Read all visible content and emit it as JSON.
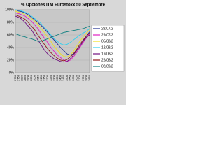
{
  "chart_data": {
    "type": "line",
    "title": "% Opciones ITM Eurostoxx 50 Septiembre",
    "categories": [
      "2700",
      "2750",
      "2800",
      "2850",
      "2900",
      "2950",
      "3000",
      "3050",
      "3100",
      "3150",
      "3200",
      "3250",
      "3300",
      "3350",
      "3400",
      "3450",
      "3500",
      "3550",
      "3600",
      "3650",
      "3700",
      "3750",
      "3800",
      "3850"
    ],
    "series": [
      {
        "name": "22/07/2",
        "color": "#1f2f8f",
        "values": [
          100,
          98,
          97,
          95,
          92,
          88,
          84,
          80,
          75,
          70,
          64,
          58,
          52,
          46,
          40,
          35,
          30,
          28,
          30,
          35,
          42,
          50,
          58,
          65
        ]
      },
      {
        "name": "29/07/2",
        "color": "#e020c0",
        "values": [
          95,
          94,
          92,
          90,
          86,
          82,
          76,
          70,
          62,
          55,
          48,
          40,
          34,
          28,
          24,
          20,
          18,
          20,
          25,
          32,
          40,
          48,
          55,
          62
        ]
      },
      {
        "name": "05/08/2",
        "color": "#f0e020",
        "values": [
          98,
          96,
          95,
          92,
          90,
          86,
          82,
          77,
          70,
          64,
          57,
          50,
          42,
          36,
          30,
          26,
          25,
          28,
          34,
          42,
          50,
          57,
          63,
          68
        ]
      },
      {
        "name": "12/08/2",
        "color": "#30d0f0",
        "values": [
          100,
          99,
          98,
          96,
          94,
          90,
          86,
          82,
          78,
          72,
          66,
          60,
          54,
          50,
          46,
          44,
          45,
          48,
          52,
          56,
          60,
          63,
          66,
          70
        ]
      },
      {
        "name": "19/08/2",
        "color": "#701080",
        "values": [
          90,
          88,
          85,
          80,
          74,
          68,
          60,
          52,
          44,
          36,
          30,
          26,
          22,
          20,
          18,
          17,
          18,
          22,
          28,
          35,
          42,
          50,
          56,
          60
        ]
      },
      {
        "name": "26/08/2",
        "color": "#901818",
        "values": [
          92,
          90,
          88,
          85,
          80,
          74,
          68,
          60,
          52,
          45,
          38,
          32,
          27,
          23,
          20,
          19,
          21,
          25,
          30,
          37,
          45,
          52,
          58,
          63
        ]
      },
      {
        "name": "02/09/2",
        "color": "#108080",
        "values": [
          62,
          60,
          58,
          57,
          55,
          54,
          52,
          50,
          50,
          52,
          54,
          56,
          58,
          60,
          62,
          64,
          65,
          66,
          67,
          68,
          69,
          70,
          72,
          74
        ]
      }
    ],
    "ylim": [
      0,
      100
    ],
    "yticks": [
      {
        "value": 0,
        "label": "0%"
      },
      {
        "value": 20,
        "label": "20%"
      },
      {
        "value": 40,
        "label": "40%"
      },
      {
        "value": 60,
        "label": "60%"
      },
      {
        "value": 80,
        "label": "80%"
      },
      {
        "value": 100,
        "label": "100%"
      }
    ],
    "grid": true
  }
}
